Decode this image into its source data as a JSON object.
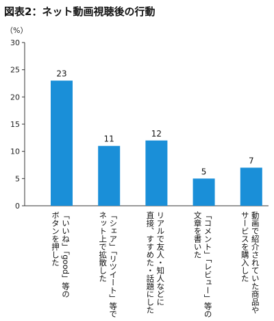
{
  "chart_data": {
    "type": "bar",
    "title": "図表2：ネット動画視聴後の行動",
    "ylabel": "（%）",
    "ylim": [
      0,
      30
    ],
    "yticks": [
      0,
      5,
      10,
      15,
      20,
      25,
      30
    ],
    "grid": false,
    "bar_color": "#1a8fd8",
    "categories": [
      [
        "「いいね」「good」等の",
        "ボタンを押した"
      ],
      [
        "「シェア」「リツイート」等で",
        "ネット上で拡散した"
      ],
      [
        "リアルで友人・知人などに",
        "直接、すすめた・話題にした"
      ],
      [
        "「コメント」「レビュー」等の",
        "文章を書いた"
      ],
      [
        "動画で紹介されていた商品や",
        "サービスを購入した"
      ]
    ],
    "values": [
      23,
      11,
      12,
      5,
      7
    ]
  }
}
